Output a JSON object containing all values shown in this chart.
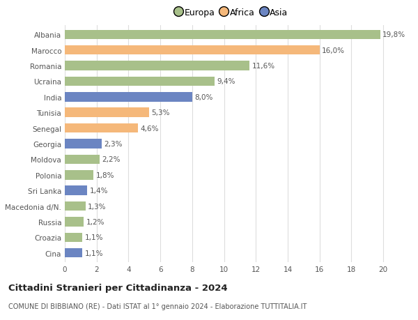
{
  "countries": [
    "Albania",
    "Marocco",
    "Romania",
    "Ucraina",
    "India",
    "Tunisia",
    "Senegal",
    "Georgia",
    "Moldova",
    "Polonia",
    "Sri Lanka",
    "Macedonia d/N.",
    "Russia",
    "Croazia",
    "Cina"
  ],
  "values": [
    19.8,
    16.0,
    11.6,
    9.4,
    8.0,
    5.3,
    4.6,
    2.3,
    2.2,
    1.8,
    1.4,
    1.3,
    1.2,
    1.1,
    1.1
  ],
  "labels": [
    "19,8%",
    "16,0%",
    "11,6%",
    "9,4%",
    "8,0%",
    "5,3%",
    "4,6%",
    "2,3%",
    "2,2%",
    "1,8%",
    "1,4%",
    "1,3%",
    "1,2%",
    "1,1%",
    "1,1%"
  ],
  "continents": [
    "Europa",
    "Africa",
    "Europa",
    "Europa",
    "Asia",
    "Africa",
    "Africa",
    "Asia",
    "Europa",
    "Europa",
    "Asia",
    "Europa",
    "Europa",
    "Europa",
    "Asia"
  ],
  "colors": {
    "Europa": "#a8c08a",
    "Africa": "#f5b87a",
    "Asia": "#6b85c2"
  },
  "legend_labels": [
    "Europa",
    "Africa",
    "Asia"
  ],
  "legend_colors": [
    "#a8c08a",
    "#f5b87a",
    "#6b85c2"
  ],
  "title": "Cittadini Stranieri per Cittadinanza - 2024",
  "subtitle": "COMUNE DI BIBBIANO (RE) - Dati ISTAT al 1° gennaio 2024 - Elaborazione TUTTITALIA.IT",
  "xlim": [
    0,
    21
  ],
  "xticks": [
    0,
    2,
    4,
    6,
    8,
    10,
    12,
    14,
    16,
    18,
    20
  ],
  "background_color": "#ffffff",
  "grid_color": "#dddddd",
  "bar_height": 0.6,
  "label_fontsize": 7.5,
  "tick_fontsize": 7.5,
  "title_fontsize": 9.5,
  "subtitle_fontsize": 7.0
}
